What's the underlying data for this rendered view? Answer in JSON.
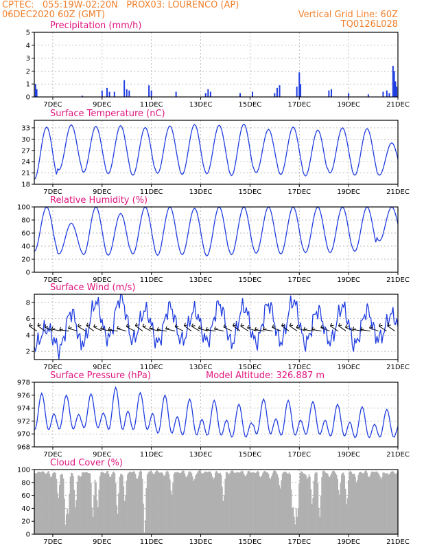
{
  "header": {
    "line1_left": "CPTEC:   055:19W-02:20N   PROX03: LOURENCO (AP)",
    "line2_left": "06DEC2020 60Z (GMT)",
    "line2_right": "Vertical Grid Line: 60Z",
    "line3_right": "TQ0126L028",
    "color": "#f07f2a"
  },
  "colors": {
    "title": "#e0147e",
    "series": "#1f3de0",
    "cloud": "#b0b0b0",
    "wind_arrow": "#000000"
  },
  "x_axis": {
    "ticks": [
      "7DEC",
      "9DEC",
      "11DEC",
      "13DEC",
      "15DEC",
      "17DEC",
      "19DEC",
      "21DEC"
    ],
    "range_days": [
      6.25,
      21.0
    ]
  },
  "chart_data": [
    {
      "type": "bar",
      "title": "Precipitation (mm/h)",
      "ylim": [
        0,
        5
      ],
      "yticks": [
        "0",
        "1",
        "2",
        "3",
        "4",
        "5"
      ],
      "events": [
        {
          "day": 6.3,
          "value": 1.0
        },
        {
          "day": 6.35,
          "value": 0.6
        },
        {
          "day": 8.2,
          "value": 0.1
        },
        {
          "day": 9.0,
          "value": 0.5
        },
        {
          "day": 9.2,
          "value": 0.7
        },
        {
          "day": 9.3,
          "value": 0.4
        },
        {
          "day": 9.5,
          "value": 0.4
        },
        {
          "day": 9.9,
          "value": 1.3
        },
        {
          "day": 10.0,
          "value": 0.6
        },
        {
          "day": 10.1,
          "value": 0.5
        },
        {
          "day": 10.9,
          "value": 0.9
        },
        {
          "day": 11.0,
          "value": 0.5
        },
        {
          "day": 12.0,
          "value": 0.4
        },
        {
          "day": 13.2,
          "value": 0.3
        },
        {
          "day": 13.3,
          "value": 0.6
        },
        {
          "day": 13.4,
          "value": 0.4
        },
        {
          "day": 14.6,
          "value": 0.3
        },
        {
          "day": 15.1,
          "value": 0.4
        },
        {
          "day": 16.0,
          "value": 0.3
        },
        {
          "day": 16.1,
          "value": 0.7
        },
        {
          "day": 16.2,
          "value": 0.9
        },
        {
          "day": 16.9,
          "value": 0.8
        },
        {
          "day": 17.0,
          "value": 1.9
        },
        {
          "day": 17.05,
          "value": 1.0
        },
        {
          "day": 18.2,
          "value": 0.5
        },
        {
          "day": 18.3,
          "value": 0.6
        },
        {
          "day": 19.0,
          "value": 0.3
        },
        {
          "day": 19.8,
          "value": 0.2
        },
        {
          "day": 20.4,
          "value": 0.4
        },
        {
          "day": 20.55,
          "value": 0.5
        },
        {
          "day": 20.65,
          "value": 0.3
        },
        {
          "day": 20.8,
          "value": 2.4
        },
        {
          "day": 20.85,
          "value": 2.0
        },
        {
          "day": 20.9,
          "value": 1.2
        },
        {
          "day": 20.95,
          "value": 0.8
        }
      ]
    },
    {
      "type": "line",
      "title": "Surface Temperature (nC)",
      "ylim": [
        18,
        35
      ],
      "yticks": [
        "18",
        "21",
        "24",
        "27",
        "30",
        "33"
      ],
      "daily_max": [
        33.2,
        33.8,
        33.4,
        33.6,
        33.1,
        33.5,
        33.9,
        33.7,
        34.0,
        32.6,
        33.2,
        32.4,
        33.0,
        32.8,
        29.0
      ],
      "daily_min": [
        19.3,
        21.8,
        21.2,
        20.8,
        20.4,
        20.9,
        20.6,
        20.8,
        20.3,
        21.1,
        20.6,
        20.2,
        21.0,
        20.4,
        20.4
      ]
    },
    {
      "type": "line",
      "title": "Relative Humidity (%)",
      "ylim": [
        0,
        100
      ],
      "yticks": [
        "0",
        "20",
        "40",
        "60",
        "80",
        "100"
      ],
      "daily_max": [
        100,
        75,
        100,
        90,
        100,
        100,
        98,
        100,
        100,
        100,
        100,
        100,
        100,
        100,
        100
      ],
      "daily_min": [
        32,
        28,
        27,
        26,
        28,
        26,
        27,
        25,
        27,
        29,
        28,
        30,
        30,
        32,
        48
      ]
    },
    {
      "type": "line",
      "title": "Surface Wind (m/s)",
      "ylim": [
        1,
        9
      ],
      "yticks": [
        "2",
        "4",
        "6",
        "8"
      ],
      "daily_max": [
        4.8,
        6.8,
        8.0,
        8.6,
        7.0,
        7.5,
        7.0,
        7.8,
        7.5,
        7.8,
        8.2,
        7.0,
        7.5,
        7.0,
        6.5
      ],
      "daily_min": [
        2.6,
        2.2,
        3.2,
        3.6,
        3.4,
        3.0,
        3.3,
        3.2,
        3.0,
        3.1,
        3.2,
        3.0,
        3.2,
        2.8,
        3.6
      ]
    },
    {
      "type": "line",
      "title": "Surface Pressure (hPa)",
      "annotation": "Model Altitude: 326.887 m",
      "ylim": [
        968,
        978
      ],
      "yticks": [
        "968",
        "970",
        "972",
        "974",
        "976",
        "978"
      ],
      "daily_max": [
        976.3,
        976.0,
        976.2,
        977.2,
        976.4,
        976.0,
        975.4,
        975.2,
        974.6,
        975.4,
        975.2,
        975.0,
        974.6,
        974.2,
        973.8
      ],
      "daily_min": [
        969.2,
        969.4,
        969.6,
        969.0,
        969.2,
        968.6,
        968.4,
        968.4,
        968.2,
        968.6,
        968.4,
        968.6,
        968.4,
        968.2,
        968.4
      ]
    },
    {
      "type": "bar",
      "title": "Cloud Cover (%)",
      "ylim": [
        0,
        100
      ],
      "yticks": [
        "0",
        "20",
        "40",
        "60",
        "80",
        "100"
      ],
      "typical": 96,
      "dips": [
        {
          "day": 6.9,
          "value": 88
        },
        {
          "day": 7.2,
          "value": 55
        },
        {
          "day": 7.5,
          "value": 12
        },
        {
          "day": 7.6,
          "value": 30
        },
        {
          "day": 7.9,
          "value": 40
        },
        {
          "day": 8.1,
          "value": 88
        },
        {
          "day": 8.6,
          "value": 25
        },
        {
          "day": 8.8,
          "value": 40
        },
        {
          "day": 9.3,
          "value": 88
        },
        {
          "day": 9.6,
          "value": 30
        },
        {
          "day": 9.9,
          "value": 50
        },
        {
          "day": 10.4,
          "value": 85
        },
        {
          "day": 10.7,
          "value": 0
        },
        {
          "day": 11.5,
          "value": 90
        },
        {
          "day": 11.8,
          "value": 60
        },
        {
          "day": 12.4,
          "value": 88
        },
        {
          "day": 12.7,
          "value": 82
        },
        {
          "day": 13.5,
          "value": 85
        },
        {
          "day": 13.9,
          "value": 50
        },
        {
          "day": 14.8,
          "value": 90
        },
        {
          "day": 15.4,
          "value": 88
        },
        {
          "day": 15.8,
          "value": 85
        },
        {
          "day": 16.2,
          "value": 70
        },
        {
          "day": 16.7,
          "value": 40
        },
        {
          "day": 16.8,
          "value": 12
        },
        {
          "day": 16.9,
          "value": 25
        },
        {
          "day": 17.3,
          "value": 85
        },
        {
          "day": 17.5,
          "value": 45
        },
        {
          "day": 17.8,
          "value": 25
        },
        {
          "day": 18.2,
          "value": 88
        },
        {
          "day": 18.6,
          "value": 60
        },
        {
          "day": 18.9,
          "value": 45
        },
        {
          "day": 19.3,
          "value": 80
        },
        {
          "day": 19.8,
          "value": 88
        },
        {
          "day": 20.3,
          "value": 85
        },
        {
          "day": 20.6,
          "value": 92
        }
      ]
    }
  ]
}
